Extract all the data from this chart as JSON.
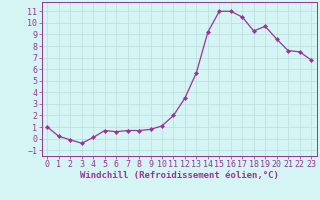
{
  "x": [
    0,
    1,
    2,
    3,
    4,
    5,
    6,
    7,
    8,
    9,
    10,
    11,
    12,
    13,
    14,
    15,
    16,
    17,
    18,
    19,
    20,
    21,
    22,
    23
  ],
  "y": [
    1.0,
    0.2,
    -0.1,
    -0.4,
    0.1,
    0.7,
    0.6,
    0.7,
    0.7,
    0.8,
    1.1,
    2.0,
    3.5,
    5.7,
    9.2,
    11.0,
    11.0,
    10.5,
    9.3,
    9.7,
    8.6,
    7.6,
    7.5,
    6.8
  ],
  "line_color": "#993399",
  "marker": "D",
  "marker_size": 2.2,
  "bg_color": "#d5f5f5",
  "grid_color": "#b8dede",
  "xlabel": "Windchill (Refroidissement éolien,°C)",
  "xlabel_fontsize": 6.5,
  "tick_fontsize": 6.0,
  "ylim": [
    -1.5,
    11.8
  ],
  "xlim": [
    -0.5,
    23.5
  ],
  "yticks": [
    -1,
    0,
    1,
    2,
    3,
    4,
    5,
    6,
    7,
    8,
    9,
    10,
    11
  ],
  "xticks": [
    0,
    1,
    2,
    3,
    4,
    5,
    6,
    7,
    8,
    9,
    10,
    11,
    12,
    13,
    14,
    15,
    16,
    17,
    18,
    19,
    20,
    21,
    22,
    23
  ]
}
